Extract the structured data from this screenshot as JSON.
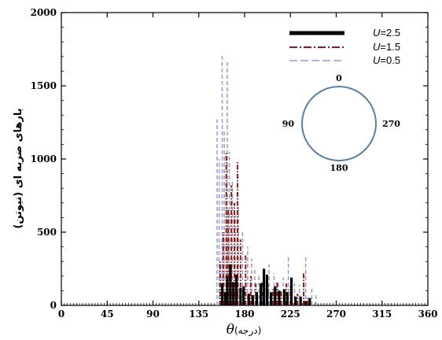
{
  "chart_data": {
    "type": "bar",
    "xlabel_symbol": "θ",
    "xlabel_unit": "(درجه)",
    "ylabel": "بارهای ضربه ای (نیوتن)",
    "xlim": [
      0,
      360
    ],
    "ylim": [
      0,
      2000
    ],
    "xticks": [
      0,
      45,
      90,
      135,
      180,
      225,
      270,
      315,
      360
    ],
    "yticks": [
      0,
      500,
      1000,
      1500,
      2000
    ],
    "legend_position": "top-right",
    "series": [
      {
        "name_var": "U",
        "name_val": "=2.5",
        "color": "#000000",
        "style": "solid",
        "x": [
          158,
          161,
          163,
          166,
          169,
          172,
          176,
          179,
          184,
          188,
          192,
          196,
          199,
          202,
          206,
          210,
          214,
          219,
          222,
          226,
          230,
          235,
          240,
          244
        ],
        "values": [
          150,
          90,
          200,
          280,
          160,
          210,
          120,
          130,
          80,
          70,
          90,
          150,
          250,
          210,
          90,
          130,
          100,
          110,
          90,
          190,
          60,
          60,
          30,
          50
        ]
      },
      {
        "name_var": "U",
        "name_val": "=1.5",
        "color": "#8b1a1a",
        "style": "dashdot",
        "x": [
          156,
          159,
          162,
          164,
          167,
          170,
          173,
          176,
          181,
          186,
          191,
          197,
          203,
          208,
          212,
          216,
          221,
          225,
          232,
          238,
          242
        ],
        "values": [
          300,
          500,
          1050,
          650,
          820,
          700,
          980,
          450,
          350,
          200,
          150,
          160,
          140,
          120,
          160,
          100,
          150,
          130,
          80,
          220,
          60
        ]
      },
      {
        "name_var": "U",
        "name_val": "=0.5",
        "color": "#9999cc",
        "style": "dashed",
        "x": [
          153,
          155,
          158,
          160,
          163,
          165,
          168,
          171,
          174,
          178,
          183,
          187,
          190,
          194,
          199,
          204,
          209,
          213,
          218,
          223,
          229,
          234,
          240,
          246,
          250
        ],
        "values": [
          1270,
          1000,
          1720,
          1200,
          1670,
          1050,
          850,
          620,
          680,
          500,
          400,
          320,
          260,
          200,
          250,
          280,
          220,
          160,
          190,
          340,
          150,
          140,
          330,
          120,
          80
        ]
      }
    ],
    "inset": {
      "angles": [
        "0",
        "90",
        "180",
        "270"
      ]
    }
  }
}
